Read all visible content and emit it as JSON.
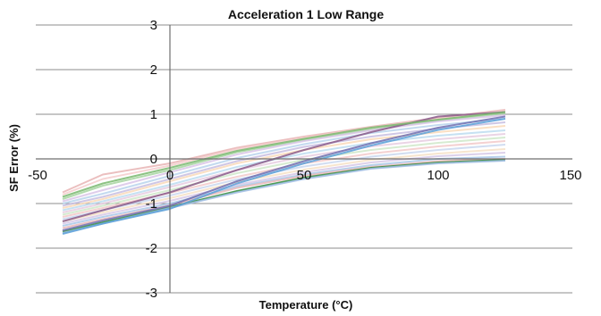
{
  "chart_data": {
    "type": "line",
    "title": "Acceleration 1 Low Range",
    "xlabel": "Temperature (°C)",
    "ylabel": "SF Error (%)",
    "xlim": [
      -50,
      150
    ],
    "ylim": [
      -3,
      3
    ],
    "x_ticks": [
      -50,
      0,
      50,
      100,
      150
    ],
    "y_ticks": [
      -3,
      -2,
      -1,
      0,
      1,
      2,
      3
    ],
    "grid": "horizontal",
    "legend": "none",
    "x": [
      -40,
      -25,
      0,
      25,
      50,
      75,
      100,
      125
    ],
    "series": [
      {
        "color": "#e8b4b4",
        "values": [
          -0.75,
          -0.35,
          -0.1,
          0.25,
          0.5,
          0.72,
          0.92,
          1.1
        ]
      },
      {
        "color": "#f4cccc",
        "values": [
          -0.8,
          -0.45,
          -0.15,
          0.22,
          0.47,
          0.7,
          0.9,
          1.08
        ]
      },
      {
        "color": "#a6d4a0",
        "values": [
          -0.9,
          -0.6,
          -0.25,
          0.15,
          0.42,
          0.66,
          0.86,
          1.02
        ]
      },
      {
        "color": "#d9c4e8",
        "values": [
          -0.95,
          -0.7,
          -0.3,
          0.1,
          0.4,
          0.64,
          0.84,
          0.98
        ]
      },
      {
        "color": "#b9d3ec",
        "values": [
          -1.0,
          -0.78,
          -0.38,
          0.02,
          0.33,
          0.58,
          0.76,
          0.9
        ]
      },
      {
        "color": "#c7bde0",
        "values": [
          -1.05,
          -0.85,
          -0.45,
          -0.05,
          0.27,
          0.5,
          0.68,
          0.82
        ]
      },
      {
        "color": "#f9d9b8",
        "values": [
          -1.1,
          -0.9,
          -0.5,
          -0.1,
          0.2,
          0.44,
          0.6,
          0.74
        ]
      },
      {
        "color": "#bcdcf0",
        "values": [
          -1.15,
          -0.95,
          -0.58,
          -0.18,
          0.12,
          0.36,
          0.52,
          0.64
        ]
      },
      {
        "color": "#e6cce0",
        "values": [
          -1.2,
          -1.0,
          -0.63,
          -0.25,
          0.05,
          0.28,
          0.44,
          0.56
        ]
      },
      {
        "color": "#cfe7c9",
        "values": [
          -1.25,
          -1.05,
          -0.7,
          -0.32,
          -0.02,
          0.2,
          0.36,
          0.48
        ]
      },
      {
        "color": "#f2c9c9",
        "values": [
          -1.3,
          -1.1,
          -0.76,
          -0.4,
          -0.1,
          0.12,
          0.28,
          0.4
        ]
      },
      {
        "color": "#c9d7ef",
        "values": [
          -1.35,
          -1.15,
          -0.82,
          -0.46,
          -0.17,
          0.05,
          0.2,
          0.32
        ]
      },
      {
        "color": "#f6e0c6",
        "values": [
          -1.4,
          -1.2,
          -0.88,
          -0.52,
          -0.24,
          -0.02,
          0.12,
          0.22
        ]
      },
      {
        "color": "#d6c8e6",
        "values": [
          -1.45,
          -1.25,
          -0.94,
          -0.58,
          -0.3,
          -0.08,
          0.06,
          0.14
        ]
      },
      {
        "color": "#a9c7e8",
        "values": [
          -1.5,
          -1.3,
          -1.0,
          -0.62,
          -0.35,
          -0.14,
          0.0,
          0.05
        ]
      },
      {
        "color": "#e9b7b7",
        "values": [
          -1.55,
          -1.35,
          -1.04,
          -0.65,
          -0.38,
          -0.18,
          -0.05,
          0.0
        ]
      },
      {
        "color": "#2f8a3a",
        "values": [
          -1.63,
          -1.42,
          -1.08,
          -0.72,
          -0.42,
          -0.2,
          -0.08,
          -0.02
        ]
      },
      {
        "color": "#9dbbe3",
        "values": [
          -1.66,
          -1.45,
          -1.1,
          -0.75,
          -0.45,
          -0.22,
          -0.1,
          -0.04
        ]
      },
      {
        "color": "#6f6fb0",
        "values": [
          -1.6,
          -1.38,
          -1.05,
          -0.5,
          -0.05,
          0.35,
          0.7,
          0.95
        ]
      },
      {
        "color": "#5aa0d8",
        "values": [
          -1.68,
          -1.45,
          -1.12,
          -0.55,
          -0.1,
          0.3,
          0.65,
          0.9
        ]
      },
      {
        "color": "#8a5a8a",
        "values": [
          -1.4,
          -1.15,
          -0.75,
          -0.25,
          0.2,
          0.6,
          0.95,
          1.05
        ]
      },
      {
        "color": "#79b86f",
        "values": [
          -0.85,
          -0.55,
          -0.2,
          0.18,
          0.45,
          0.7,
          0.88,
          1.05
        ]
      }
    ]
  }
}
